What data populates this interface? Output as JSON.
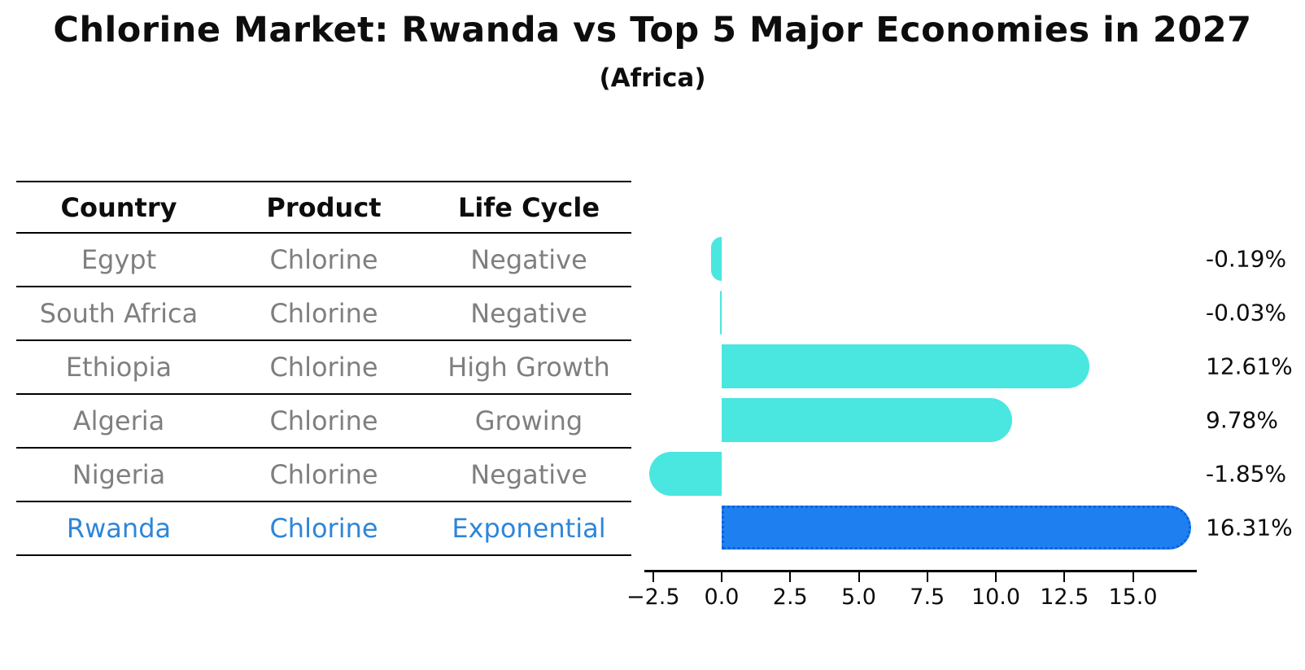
{
  "title": "Chlorine Market: Rwanda vs Top 5 Major Economies in 2027",
  "subtitle": "(Africa)",
  "table": {
    "headers": [
      "Country",
      "Product",
      "Life Cycle"
    ],
    "rows": [
      {
        "country": "Egypt",
        "product": "Chlorine",
        "life_cycle": "Negative",
        "highlight": false
      },
      {
        "country": "South Africa",
        "product": "Chlorine",
        "life_cycle": "Negative",
        "highlight": false
      },
      {
        "country": "Ethiopia",
        "product": "Chlorine",
        "life_cycle": "High Growth",
        "highlight": false
      },
      {
        "country": "Algeria",
        "product": "Chlorine",
        "life_cycle": "Growing",
        "highlight": false
      },
      {
        "country": "Nigeria",
        "product": "Chlorine",
        "life_cycle": "Negative",
        "highlight": false
      },
      {
        "country": "Rwanda",
        "product": "Chlorine",
        "life_cycle": "Exponential",
        "highlight": true
      }
    ]
  },
  "chart_data": {
    "type": "bar",
    "orientation": "horizontal",
    "title": "Chlorine Market: Rwanda vs Top 5 Major Economies in 2027",
    "subtitle": "(Africa)",
    "categories": [
      "Egypt",
      "South Africa",
      "Ethiopia",
      "Algeria",
      "Nigeria",
      "Rwanda"
    ],
    "values": [
      -0.19,
      -0.03,
      12.61,
      9.78,
      -1.85,
      16.31
    ],
    "value_labels": [
      "-0.19%",
      "-0.03%",
      "12.61%",
      "9.78%",
      "-1.85%",
      "16.31%"
    ],
    "x_ticks": [
      -2.5,
      0.0,
      2.5,
      5.0,
      7.5,
      10.0,
      12.5,
      15.0
    ],
    "x_tick_labels": [
      "−2.5",
      "0.0",
      "2.5",
      "5.0",
      "7.5",
      "10.0",
      "12.5",
      "15.0"
    ],
    "xlim": [
      -2.8,
      17.4
    ],
    "xlabel": "",
    "ylabel": "",
    "grid": false,
    "legend": "none",
    "highlight_index": 5,
    "bar_color": "#4ae6e0",
    "highlight_color": "#1e80f0",
    "highlight_border_color": "#0d62dc",
    "highlight_text_color": "#2e86d9",
    "text_color_muted": "#7f7f7f",
    "axis_color": "#000000"
  }
}
